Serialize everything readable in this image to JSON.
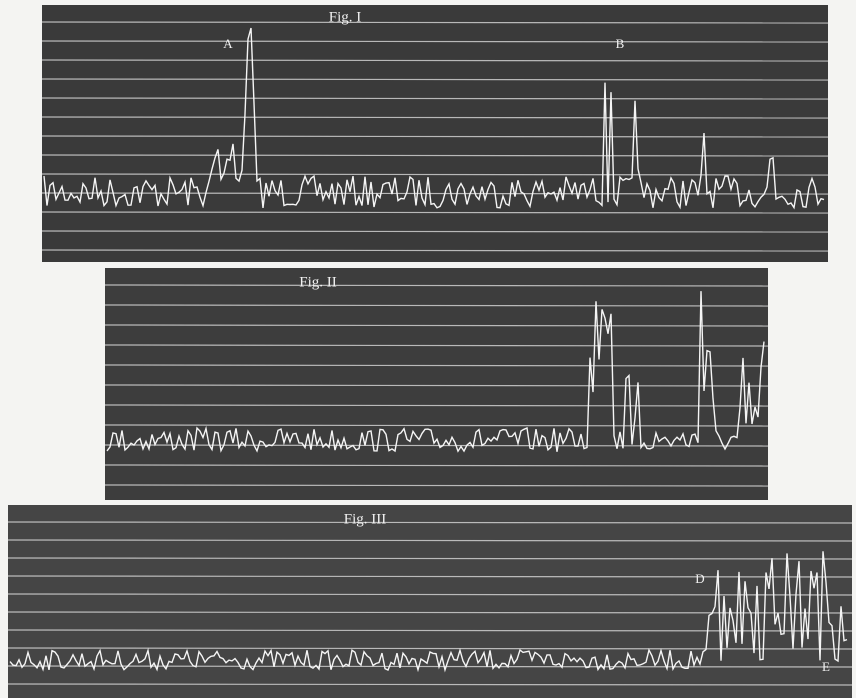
{
  "figures": [
    {
      "title": "Fig. I",
      "markers": [
        "A",
        "B"
      ]
    },
    {
      "title": "Fig. II",
      "markers": []
    },
    {
      "title": "Fig. III",
      "markers": [
        "D",
        "E"
      ]
    }
  ]
}
